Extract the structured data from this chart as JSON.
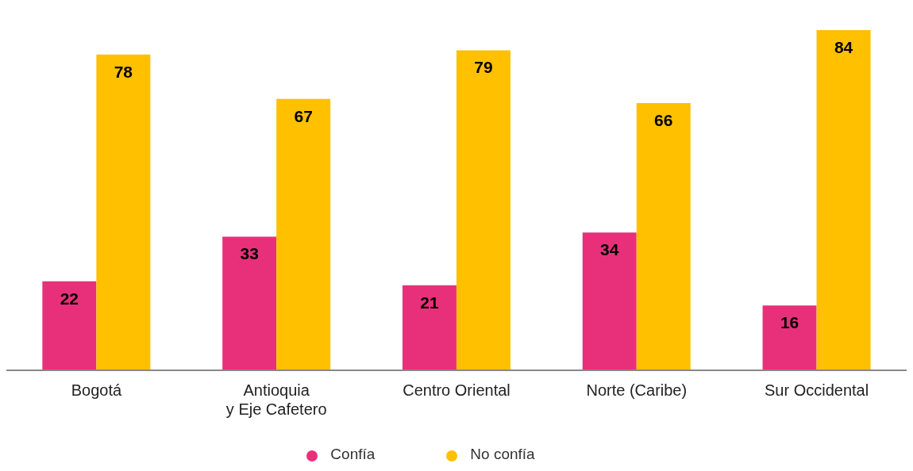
{
  "chart_data": {
    "type": "bar",
    "categories": [
      "Bogotá",
      "Antioquia\ny Eje Cafetero",
      "Centro Oriental",
      "Norte (Caribe)",
      "Sur Occidental"
    ],
    "series": [
      {
        "name": "Confía",
        "color": "#e8307a",
        "values": [
          22,
          33,
          21,
          34,
          16
        ]
      },
      {
        "name": "No confía",
        "color": "#ffc000",
        "values": [
          78,
          67,
          79,
          66,
          84
        ]
      }
    ],
    "data_labels": true,
    "legend": "bottom"
  }
}
